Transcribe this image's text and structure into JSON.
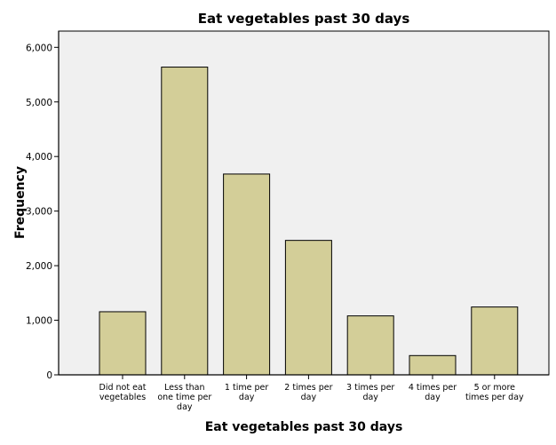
{
  "chart_data": {
    "type": "bar",
    "title": "Eat vegetables past 30 days",
    "xlabel": "Eat vegetables past 30 days",
    "ylabel": "Frequency",
    "categories": [
      [
        "Did not eat",
        "vegetables"
      ],
      [
        "Less than",
        "one time per",
        "day"
      ],
      [
        "1 time per",
        "day"
      ],
      [
        "2 times per",
        "day"
      ],
      [
        "3 times per",
        "day"
      ],
      [
        "4 times per",
        "day"
      ],
      [
        "5 or more",
        "times per day"
      ]
    ],
    "values": [
      1156,
      5638,
      3679,
      2463,
      1080,
      353,
      1243
    ],
    "ylim": [
      0,
      6000
    ],
    "yticks": [
      "0",
      "1,000",
      "2,000",
      "3,000",
      "4,000",
      "5,000",
      "6,000"
    ],
    "ytick_values": [
      0,
      1000,
      2000,
      3000,
      4000,
      5000,
      6000
    ],
    "grid": false,
    "colors": {
      "bar": "#d3ce98",
      "plot_bg": "#f0f0f0",
      "stroke": "#000000"
    }
  }
}
